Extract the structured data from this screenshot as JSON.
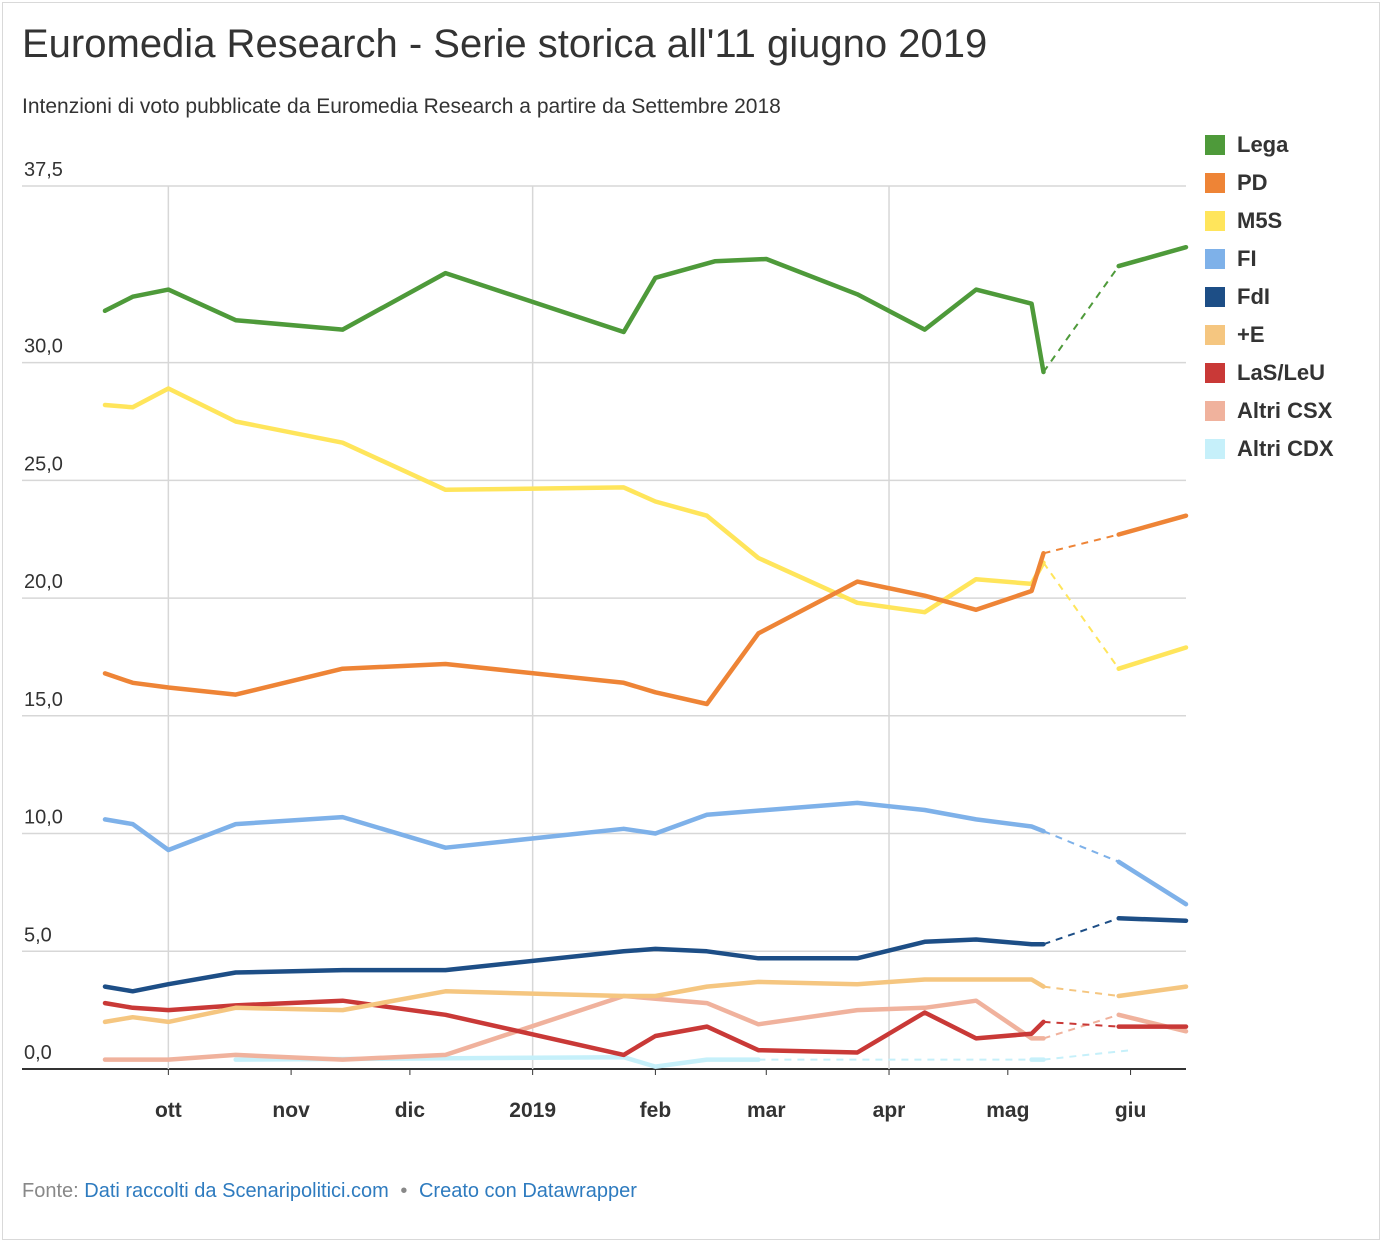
{
  "header": {
    "title": "Euromedia Research - Serie storica all'11 giugno 2019",
    "subtitle": "Intenzioni di voto pubblicate da Euromedia Research a partire da Settembre 2018"
  },
  "footer": {
    "source_prefix": "Fonte:",
    "source_link": "Dati raccolti da Scenaripolitici.com",
    "separator": "•",
    "credit_link": "Creato con Datawrapper"
  },
  "chart_data": {
    "type": "line",
    "y_tick_labels": [
      "0,0",
      "5,0",
      "10,0",
      "15,0",
      "20,0",
      "25,0",
      "30,0",
      "37,5"
    ],
    "y_ticks": [
      0,
      5,
      10,
      15,
      20,
      25,
      30,
      37.5
    ],
    "ylim": [
      0,
      37.5
    ],
    "x_range": [
      "2018-09-15",
      "2019-06-15"
    ],
    "x_ticks": [
      {
        "date": "2018-10-01",
        "label": "ott"
      },
      {
        "date": "2018-11-01",
        "label": "nov"
      },
      {
        "date": "2018-12-01",
        "label": "dic"
      },
      {
        "date": "2019-01-01",
        "label": "2019"
      },
      {
        "date": "2019-02-01",
        "label": "feb"
      },
      {
        "date": "2019-03-01",
        "label": "mar"
      },
      {
        "date": "2019-04-01",
        "label": "apr"
      },
      {
        "date": "2019-05-01",
        "label": "mag"
      },
      {
        "date": "2019-06-01",
        "label": "giu"
      }
    ],
    "grid": true,
    "legend_position": "right",
    "series": [
      {
        "name": "Lega",
        "color": "#4e9a3a",
        "points": [
          [
            "2018-09-15",
            32.2
          ],
          [
            "2018-09-22",
            32.8
          ],
          [
            "2018-10-01",
            33.1
          ],
          [
            "2018-10-18",
            31.8
          ],
          [
            "2018-11-14",
            31.4
          ],
          [
            "2018-12-10",
            33.8
          ],
          [
            "2019-01-24",
            31.3
          ],
          [
            "2019-02-01",
            33.6
          ],
          [
            "2019-02-16",
            34.3
          ],
          [
            "2019-03-01",
            34.4
          ],
          [
            "2019-03-24",
            32.9
          ],
          [
            "2019-04-10",
            31.4
          ],
          [
            "2019-04-23",
            33.1
          ],
          [
            "2019-05-07",
            32.5
          ],
          [
            "2019-05-10",
            29.6
          ]
        ],
        "dashed_to": [
          "2019-05-29",
          34.1
        ],
        "tail": [
          [
            "2019-05-29",
            34.1
          ],
          [
            "2019-06-15",
            34.9
          ]
        ]
      },
      {
        "name": "PD",
        "color": "#ee8436",
        "points": [
          [
            "2018-09-15",
            16.8
          ],
          [
            "2018-09-22",
            16.4
          ],
          [
            "2018-10-01",
            16.2
          ],
          [
            "2018-10-18",
            15.9
          ],
          [
            "2018-11-14",
            17.0
          ],
          [
            "2018-12-10",
            17.2
          ],
          [
            "2019-01-24",
            16.4
          ],
          [
            "2019-02-01",
            16.0
          ],
          [
            "2019-02-14",
            15.5
          ],
          [
            "2019-02-27",
            18.5
          ],
          [
            "2019-03-24",
            20.7
          ],
          [
            "2019-04-10",
            20.1
          ],
          [
            "2019-04-23",
            19.5
          ],
          [
            "2019-05-07",
            20.3
          ],
          [
            "2019-05-10",
            21.9
          ]
        ],
        "dashed_to": [
          "2019-05-29",
          22.7
        ],
        "tail": [
          [
            "2019-05-29",
            22.7
          ],
          [
            "2019-06-15",
            23.5
          ]
        ]
      },
      {
        "name": "M5S",
        "color": "#ffe55b",
        "points": [
          [
            "2018-09-15",
            28.2
          ],
          [
            "2018-09-22",
            28.1
          ],
          [
            "2018-10-01",
            28.9
          ],
          [
            "2018-10-18",
            27.5
          ],
          [
            "2018-11-14",
            26.6
          ],
          [
            "2018-12-10",
            24.6
          ],
          [
            "2019-01-24",
            24.7
          ],
          [
            "2019-02-01",
            24.1
          ],
          [
            "2019-02-14",
            23.5
          ],
          [
            "2019-02-27",
            21.7
          ],
          [
            "2019-03-24",
            19.8
          ],
          [
            "2019-04-10",
            19.4
          ],
          [
            "2019-04-23",
            20.8
          ],
          [
            "2019-05-07",
            20.6
          ],
          [
            "2019-05-10",
            21.5
          ]
        ],
        "dashed_to": [
          "2019-05-29",
          17.0
        ],
        "tail": [
          [
            "2019-05-29",
            17.0
          ],
          [
            "2019-06-15",
            17.9
          ]
        ]
      },
      {
        "name": "FI",
        "color": "#7eb1e9",
        "points": [
          [
            "2018-09-15",
            10.6
          ],
          [
            "2018-09-22",
            10.4
          ],
          [
            "2018-10-01",
            9.3
          ],
          [
            "2018-10-18",
            10.4
          ],
          [
            "2018-11-14",
            10.7
          ],
          [
            "2018-12-10",
            9.4
          ],
          [
            "2019-01-24",
            10.2
          ],
          [
            "2019-02-01",
            10.0
          ],
          [
            "2019-02-14",
            10.8
          ],
          [
            "2019-03-24",
            11.3
          ],
          [
            "2019-04-10",
            11.0
          ],
          [
            "2019-04-23",
            10.6
          ],
          [
            "2019-05-07",
            10.3
          ],
          [
            "2019-05-10",
            10.1
          ]
        ],
        "dashed_to": [
          "2019-05-29",
          8.8
        ],
        "tail": [
          [
            "2019-05-29",
            8.8
          ],
          [
            "2019-06-15",
            7.0
          ]
        ]
      },
      {
        "name": "FdI",
        "color": "#1d4e86",
        "points": [
          [
            "2018-09-15",
            3.5
          ],
          [
            "2018-09-22",
            3.3
          ],
          [
            "2018-10-01",
            3.6
          ],
          [
            "2018-10-18",
            4.1
          ],
          [
            "2018-11-14",
            4.2
          ],
          [
            "2018-12-10",
            4.2
          ],
          [
            "2019-01-24",
            5.0
          ],
          [
            "2019-02-01",
            5.1
          ],
          [
            "2019-02-14",
            5.0
          ],
          [
            "2019-02-27",
            4.7
          ],
          [
            "2019-03-24",
            4.7
          ],
          [
            "2019-04-10",
            5.4
          ],
          [
            "2019-04-23",
            5.5
          ],
          [
            "2019-05-07",
            5.3
          ],
          [
            "2019-05-10",
            5.3
          ]
        ],
        "dashed_to": [
          "2019-05-29",
          6.4
        ],
        "tail": [
          [
            "2019-05-29",
            6.4
          ],
          [
            "2019-06-15",
            6.3
          ]
        ]
      },
      {
        "name": "+E",
        "color": "#f5c680",
        "points": [
          [
            "2018-09-15",
            2.0
          ],
          [
            "2018-09-22",
            2.2
          ],
          [
            "2018-10-01",
            2.0
          ],
          [
            "2018-10-18",
            2.6
          ],
          [
            "2018-11-14",
            2.5
          ],
          [
            "2018-12-10",
            3.3
          ],
          [
            "2019-01-24",
            3.1
          ],
          [
            "2019-02-01",
            3.1
          ],
          [
            "2019-02-14",
            3.5
          ],
          [
            "2019-02-27",
            3.7
          ],
          [
            "2019-03-24",
            3.6
          ],
          [
            "2019-04-10",
            3.8
          ],
          [
            "2019-05-07",
            3.8
          ],
          [
            "2019-05-10",
            3.5
          ]
        ],
        "dashed_to": [
          "2019-05-29",
          3.1
        ],
        "tail": [
          [
            "2019-05-29",
            3.1
          ],
          [
            "2019-06-15",
            3.5
          ]
        ]
      },
      {
        "name": "LaS/LeU",
        "color": "#c93937",
        "points": [
          [
            "2018-09-15",
            2.8
          ],
          [
            "2018-09-22",
            2.6
          ],
          [
            "2018-10-01",
            2.5
          ],
          [
            "2018-10-18",
            2.7
          ],
          [
            "2018-11-14",
            2.9
          ],
          [
            "2018-12-10",
            2.3
          ],
          [
            "2019-01-24",
            0.6
          ],
          [
            "2019-02-01",
            1.4
          ],
          [
            "2019-02-14",
            1.8
          ],
          [
            "2019-02-27",
            0.8
          ],
          [
            "2019-03-24",
            0.7
          ],
          [
            "2019-04-10",
            2.4
          ],
          [
            "2019-04-23",
            1.3
          ],
          [
            "2019-05-07",
            1.5
          ],
          [
            "2019-05-10",
            2.0
          ]
        ],
        "dashed_to": [
          "2019-05-29",
          1.8
        ],
        "tail": [
          [
            "2019-05-29",
            1.8
          ],
          [
            "2019-06-15",
            1.8
          ]
        ]
      },
      {
        "name": "Altri CSX",
        "color": "#f0b29d",
        "points": [
          [
            "2018-09-15",
            0.4
          ],
          [
            "2018-10-01",
            0.4
          ],
          [
            "2018-10-18",
            0.6
          ],
          [
            "2018-11-14",
            0.4
          ],
          [
            "2018-12-10",
            0.6
          ],
          [
            "2019-01-24",
            3.1
          ],
          [
            "2019-02-14",
            2.8
          ],
          [
            "2019-02-27",
            1.9
          ],
          [
            "2019-03-24",
            2.5
          ],
          [
            "2019-04-10",
            2.6
          ],
          [
            "2019-04-23",
            2.9
          ],
          [
            "2019-05-07",
            1.3
          ],
          [
            "2019-05-10",
            1.3
          ]
        ],
        "dashed_to": [
          "2019-05-29",
          2.3
        ],
        "tail": [
          [
            "2019-05-29",
            2.3
          ],
          [
            "2019-06-15",
            1.6
          ]
        ]
      },
      {
        "name": "Altri CDX",
        "color": "#c6f0fa",
        "points": [
          [
            "2018-10-18",
            0.4
          ],
          [
            "2019-01-24",
            0.5
          ],
          [
            "2019-02-01",
            0.1
          ],
          [
            "2019-02-14",
            0.4
          ],
          [
            "2019-02-27",
            0.4
          ]
        ],
        "dashed_to": [
          "2019-05-07",
          0.4
        ],
        "tail": [
          [
            "2019-05-07",
            0.4
          ],
          [
            "2019-05-10",
            0.4
          ]
        ],
        "dashed_end": [
          "2019-06-01",
          0.8
        ]
      }
    ]
  }
}
